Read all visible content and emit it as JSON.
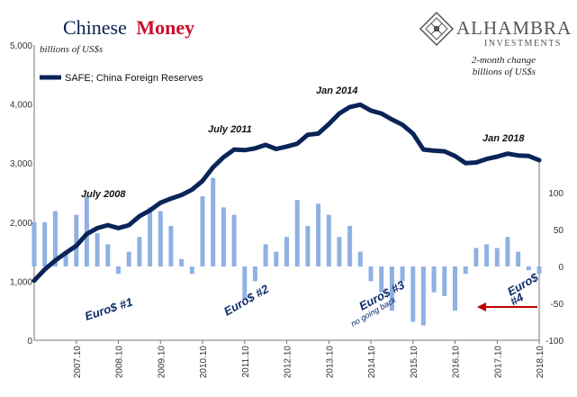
{
  "title": {
    "part1": "Chinese",
    "part2": "Money"
  },
  "brand": {
    "name": "ALHAMBRA",
    "sub": "INVESTMENTS",
    "icon": "lattice-diamond-icon"
  },
  "left_unit": "billions of US$s",
  "right_unit_line1": "2-month change",
  "right_unit_line2": "billions of US$s",
  "legend_label": "SAFE; China Foreign Reserves",
  "colors": {
    "line": "#0b2458",
    "bars": "#8fb1e3",
    "arrow": "#c00000",
    "title_accent": "#c8102e"
  },
  "annotations": {
    "jul2008": "July 2008",
    "jul2011": "July 2011",
    "jan2014": "Jan 2014",
    "jan2018": "Jan 2018"
  },
  "euro_labels": {
    "e1": "Euro$ #1",
    "e2": "Euro$ #2",
    "e3": "Euro$ #3",
    "e3_sub": "no going back",
    "e4a": "Euro$",
    "e4b": "#4"
  },
  "chart_data": {
    "type": "line",
    "left_axis": {
      "ticks": [
        "0",
        "1,000",
        "2,000",
        "3,000",
        "4,000",
        "5,000"
      ],
      "ylim": [
        0,
        5000
      ]
    },
    "right_axis": {
      "ticks": [
        "-100",
        "-50",
        "0",
        "50",
        "100"
      ],
      "ylim": [
        -100,
        150
      ]
    },
    "x_ticks": [
      "2007.10",
      "2008.10",
      "2009.10",
      "2010.10",
      "2011.10",
      "2012.10",
      "2013.10",
      "2014.10",
      "2015.10",
      "2016.10",
      "2017.10",
      "2018.10"
    ],
    "x_range": [
      "2006-10",
      "2018-10"
    ],
    "series": [
      {
        "name": "SAFE; China Foreign Reserves",
        "axis": "left",
        "x": [
          "2006-10",
          "2007-01",
          "2007-04",
          "2007-07",
          "2007-10",
          "2008-01",
          "2008-04",
          "2008-07",
          "2008-10",
          "2009-01",
          "2009-04",
          "2009-07",
          "2009-10",
          "2010-01",
          "2010-04",
          "2010-07",
          "2010-10",
          "2011-01",
          "2011-04",
          "2011-07",
          "2011-10",
          "2012-01",
          "2012-04",
          "2012-07",
          "2012-10",
          "2013-01",
          "2013-04",
          "2013-07",
          "2013-10",
          "2014-01",
          "2014-04",
          "2014-07",
          "2014-10",
          "2015-01",
          "2015-04",
          "2015-07",
          "2015-10",
          "2016-01",
          "2016-04",
          "2016-07",
          "2016-10",
          "2017-01",
          "2017-04",
          "2017-07",
          "2017-10",
          "2018-01",
          "2018-04",
          "2018-07",
          "2018-10"
        ],
        "values": [
          1010,
          1200,
          1350,
          1480,
          1600,
          1800,
          1900,
          1950,
          1900,
          1950,
          2100,
          2200,
          2330,
          2400,
          2460,
          2550,
          2700,
          2930,
          3100,
          3230,
          3220,
          3250,
          3310,
          3240,
          3280,
          3330,
          3480,
          3500,
          3660,
          3840,
          3950,
          3990,
          3890,
          3840,
          3740,
          3650,
          3500,
          3230,
          3210,
          3200,
          3120,
          3000,
          3010,
          3070,
          3110,
          3160,
          3130,
          3120,
          3050
        ]
      },
      {
        "name": "2-month change",
        "axis": "right",
        "x": [
          "2006-10",
          "2007-01",
          "2007-04",
          "2007-07",
          "2007-10",
          "2008-01",
          "2008-04",
          "2008-07",
          "2008-10",
          "2009-01",
          "2009-04",
          "2009-07",
          "2009-10",
          "2010-01",
          "2010-04",
          "2010-07",
          "2010-10",
          "2011-01",
          "2011-04",
          "2011-07",
          "2011-10",
          "2012-01",
          "2012-04",
          "2012-07",
          "2012-10",
          "2013-01",
          "2013-04",
          "2013-07",
          "2013-10",
          "2014-01",
          "2014-04",
          "2014-07",
          "2014-10",
          "2015-01",
          "2015-04",
          "2015-07",
          "2015-10",
          "2016-01",
          "2016-04",
          "2016-07",
          "2016-10",
          "2017-01",
          "2017-04",
          "2017-07",
          "2017-10",
          "2018-01",
          "2018-04",
          "2018-07",
          "2018-10"
        ],
        "values": [
          60,
          60,
          75,
          20,
          70,
          95,
          45,
          30,
          -10,
          20,
          40,
          80,
          75,
          55,
          10,
          -10,
          95,
          120,
          80,
          70,
          -45,
          -20,
          30,
          20,
          40,
          90,
          55,
          85,
          70,
          40,
          55,
          20,
          -20,
          -35,
          -60,
          -20,
          -75,
          -80,
          -35,
          -40,
          -60,
          -10,
          25,
          30,
          25,
          40,
          20,
          -5,
          -10
        ]
      }
    ]
  }
}
